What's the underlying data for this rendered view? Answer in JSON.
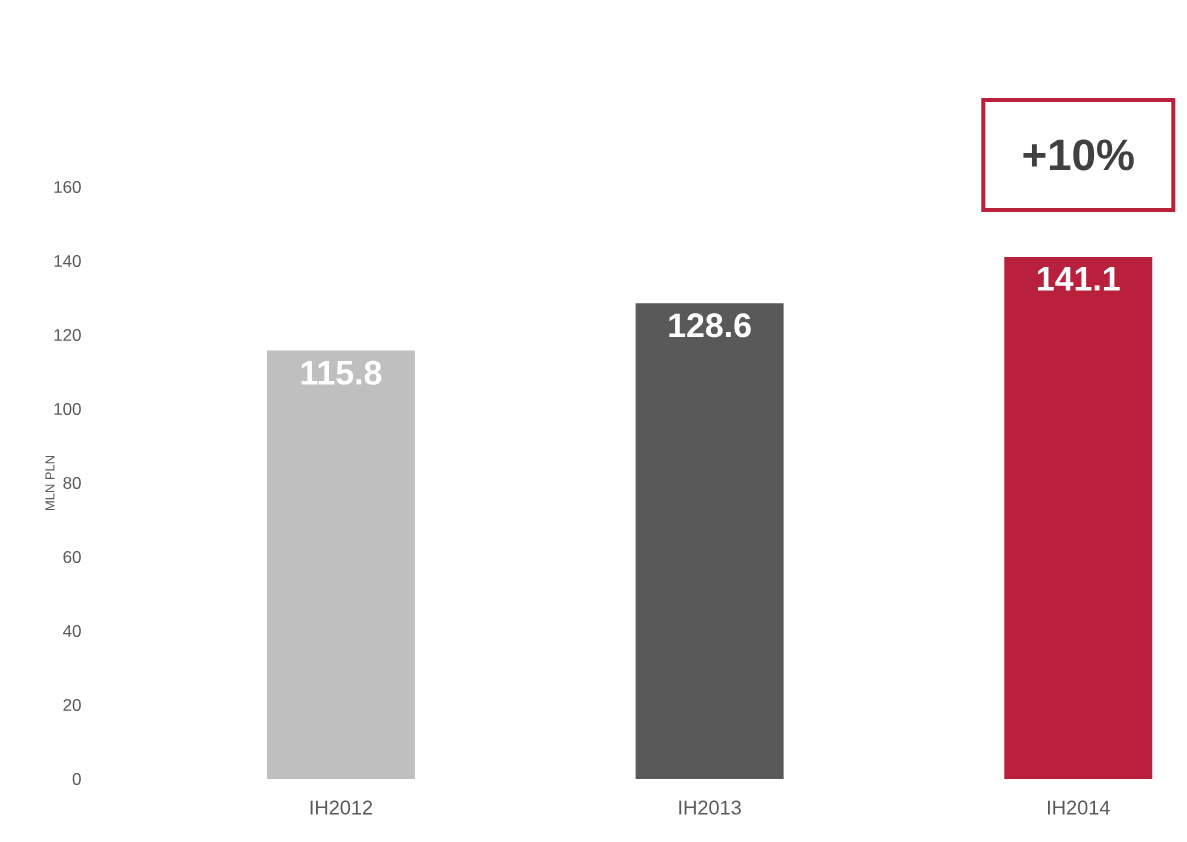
{
  "chart_data": {
    "type": "bar",
    "ylabel": "MLN PLN",
    "categories": [
      "IH2012",
      "IH2013",
      "IH2014"
    ],
    "values": [
      115.8,
      128.6,
      141.1
    ],
    "colors": [
      "#bfbfbf",
      "#595959",
      "#b9203c"
    ],
    "ylim": [
      0,
      160
    ],
    "yticks": [
      0,
      20,
      40,
      60,
      80,
      100,
      120,
      140,
      160
    ],
    "data_labels": true,
    "annotations": [
      "+10%"
    ]
  }
}
